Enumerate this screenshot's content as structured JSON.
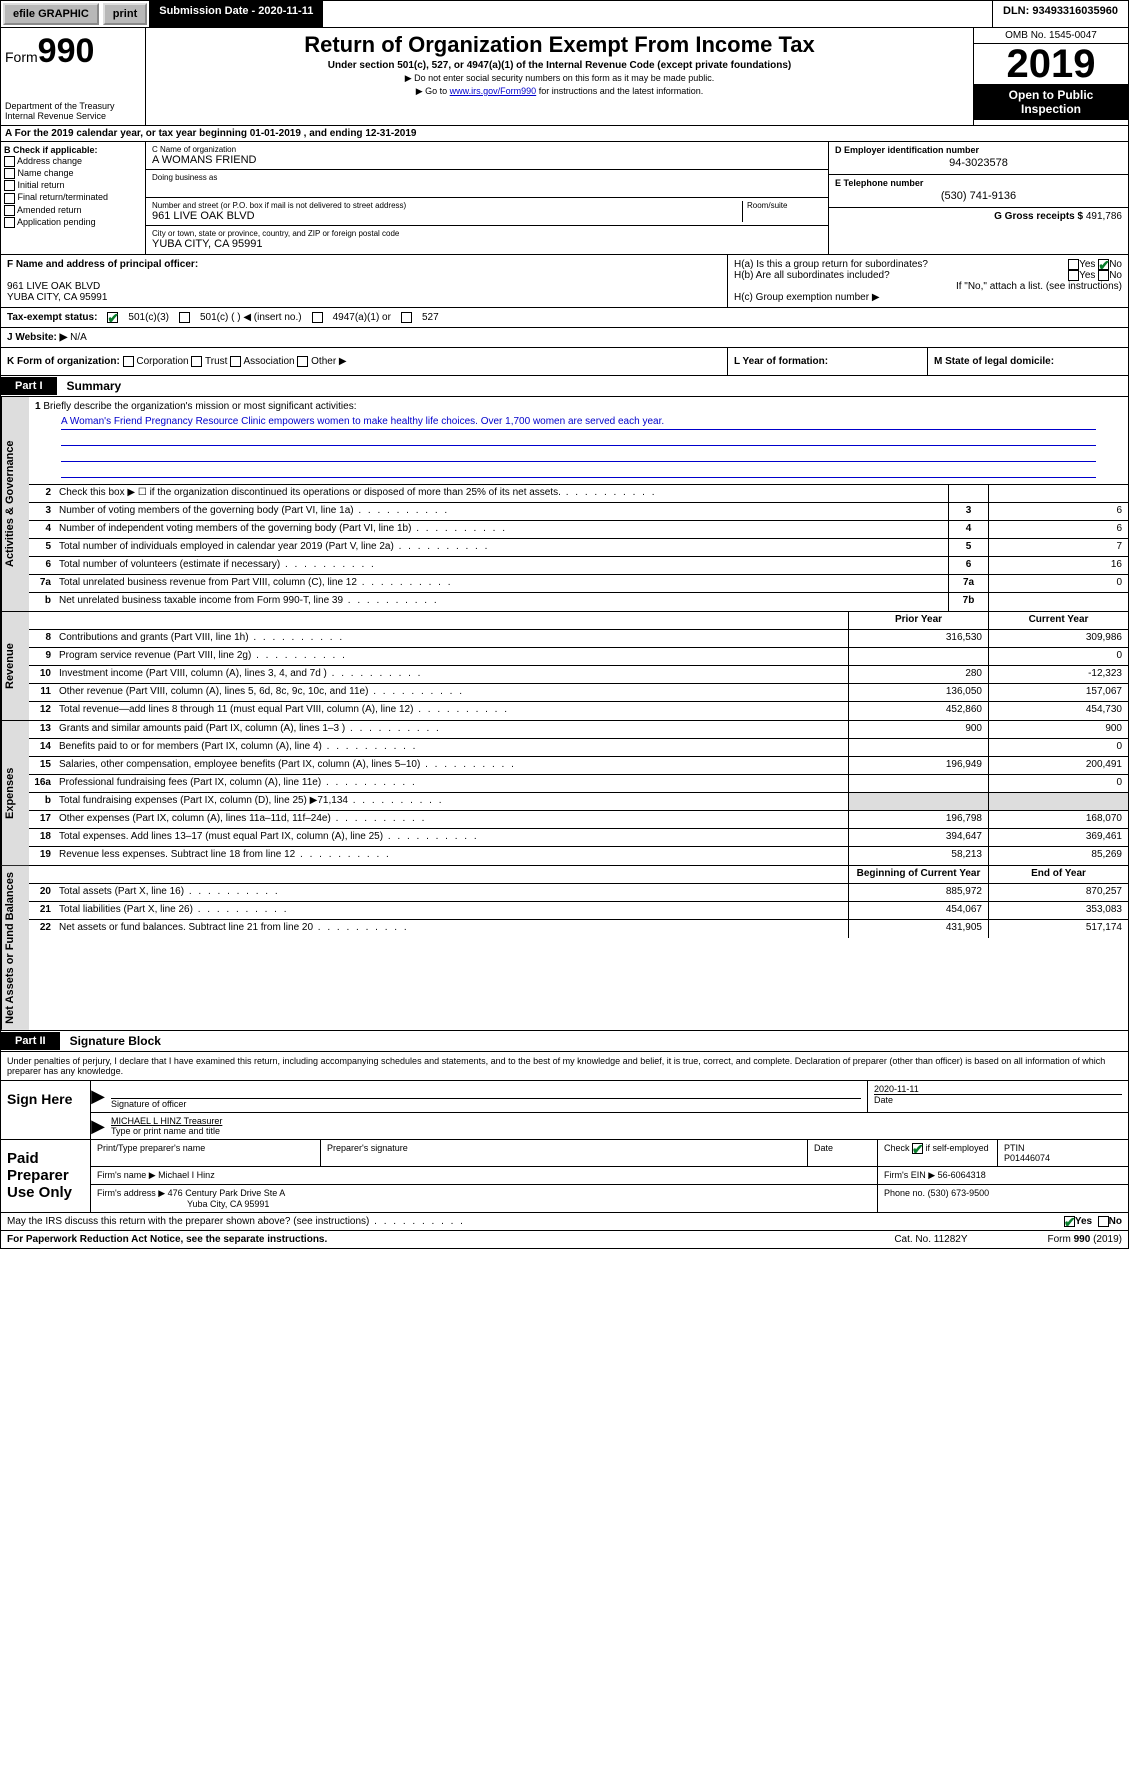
{
  "topbar": {
    "efile": "efile GRAPHIC",
    "print": "print",
    "sub_date_label": "Submission Date - 2020-11-11",
    "dln": "DLN: 93493316035960"
  },
  "header": {
    "form_label": "Form",
    "form_number": "990",
    "dept": "Department of the Treasury\nInternal Revenue Service",
    "title": "Return of Organization Exempt From Income Tax",
    "subtitle": "Under section 501(c), 527, or 4947(a)(1) of the Internal Revenue Code (except private foundations)",
    "note1": "▶ Do not enter social security numbers on this form as it may be made public.",
    "note2_pre": "▶ Go to ",
    "note2_link": "www.irs.gov/Form990",
    "note2_post": " for instructions and the latest information.",
    "omb": "OMB No. 1545-0047",
    "year": "2019",
    "open": "Open to Public Inspection"
  },
  "row_a": "A  For the 2019 calendar year, or tax year beginning 01-01-2019     , and ending 12-31-2019",
  "col_b": {
    "label": "B Check if applicable:",
    "items": [
      "Address change",
      "Name change",
      "Initial return",
      "Final return/terminated",
      "Amended return",
      "Application pending"
    ]
  },
  "col_c": {
    "name_label": "C Name of organization",
    "name": "A WOMANS FRIEND",
    "dba_label": "Doing business as",
    "dba": "",
    "addr_label": "Number and street (or P.O. box if mail is not delivered to street address)",
    "room_label": "Room/suite",
    "addr": "961 LIVE OAK BLVD",
    "city_label": "City or town, state or province, country, and ZIP or foreign postal code",
    "city": "YUBA CITY, CA  95991"
  },
  "col_d": {
    "ein_label": "D Employer identification number",
    "ein": "94-3023578",
    "phone_label": "E Telephone number",
    "phone": "(530) 741-9136",
    "gross_label": "G Gross receipts $",
    "gross": "491,786"
  },
  "row_f": {
    "label": "F  Name and address of principal officer:",
    "addr1": "961 LIVE OAK BLVD",
    "addr2": "YUBA CITY, CA  95991"
  },
  "row_h": {
    "ha": "H(a)  Is this a group return for subordinates?",
    "hb": "H(b)  Are all subordinates included?",
    "hb_note": "If \"No,\" attach a list. (see instructions)",
    "hc": "H(c)  Group exemption number ▶"
  },
  "row_i": {
    "label": "Tax-exempt status:",
    "opt1": "501(c)(3)",
    "opt2": "501(c) (   ) ◀ (insert no.)",
    "opt3": "4947(a)(1) or",
    "opt4": "527"
  },
  "row_j": {
    "label": "J  Website: ▶",
    "val": "N/A"
  },
  "row_k": {
    "k": "K Form of organization:",
    "opts": [
      "Corporation",
      "Trust",
      "Association",
      "Other ▶"
    ],
    "l": "L Year of formation:",
    "m": "M State of legal domicile:"
  },
  "part1": {
    "tab": "Part I",
    "title": "Summary"
  },
  "mission": {
    "num": "1",
    "label": "Briefly describe the organization's mission or most significant activities:",
    "text": "A Woman's Friend Pregnancy Resource Clinic empowers women to make healthy life choices. Over 1,700 women are served each year."
  },
  "governance_lines": [
    {
      "num": "2",
      "desc": "Check this box ▶ ☐  if the organization discontinued its operations or disposed of more than 25% of its net assets.",
      "c": "",
      "v": ""
    },
    {
      "num": "3",
      "desc": "Number of voting members of the governing body (Part VI, line 1a)",
      "c": "3",
      "v": "6"
    },
    {
      "num": "4",
      "desc": "Number of independent voting members of the governing body (Part VI, line 1b)",
      "c": "4",
      "v": "6"
    },
    {
      "num": "5",
      "desc": "Total number of individuals employed in calendar year 2019 (Part V, line 2a)",
      "c": "5",
      "v": "7"
    },
    {
      "num": "6",
      "desc": "Total number of volunteers (estimate if necessary)",
      "c": "6",
      "v": "16"
    },
    {
      "num": "7a",
      "desc": "Total unrelated business revenue from Part VIII, column (C), line 12",
      "c": "7a",
      "v": "0"
    },
    {
      "num": "b",
      "desc": "Net unrelated business taxable income from Form 990-T, line 39",
      "c": "7b",
      "v": ""
    }
  ],
  "revenue_head": {
    "prior": "Prior Year",
    "current": "Current Year"
  },
  "revenue_lines": [
    {
      "num": "8",
      "desc": "Contributions and grants (Part VIII, line 1h)",
      "p": "316,530",
      "c": "309,986"
    },
    {
      "num": "9",
      "desc": "Program service revenue (Part VIII, line 2g)",
      "p": "",
      "c": "0"
    },
    {
      "num": "10",
      "desc": "Investment income (Part VIII, column (A), lines 3, 4, and 7d )",
      "p": "280",
      "c": "-12,323"
    },
    {
      "num": "11",
      "desc": "Other revenue (Part VIII, column (A), lines 5, 6d, 8c, 9c, 10c, and 11e)",
      "p": "136,050",
      "c": "157,067"
    },
    {
      "num": "12",
      "desc": "Total revenue—add lines 8 through 11 (must equal Part VIII, column (A), line 12)",
      "p": "452,860",
      "c": "454,730"
    }
  ],
  "expense_lines": [
    {
      "num": "13",
      "desc": "Grants and similar amounts paid (Part IX, column (A), lines 1–3 )",
      "p": "900",
      "c": "900"
    },
    {
      "num": "14",
      "desc": "Benefits paid to or for members (Part IX, column (A), line 4)",
      "p": "",
      "c": "0"
    },
    {
      "num": "15",
      "desc": "Salaries, other compensation, employee benefits (Part IX, column (A), lines 5–10)",
      "p": "196,949",
      "c": "200,491"
    },
    {
      "num": "16a",
      "desc": "Professional fundraising fees (Part IX, column (A), line 11e)",
      "p": "",
      "c": "0"
    },
    {
      "num": "b",
      "desc": "Total fundraising expenses (Part IX, column (D), line 25) ▶71,134",
      "p": "grey",
      "c": "grey"
    },
    {
      "num": "17",
      "desc": "Other expenses (Part IX, column (A), lines 11a–11d, 11f–24e)",
      "p": "196,798",
      "c": "168,070"
    },
    {
      "num": "18",
      "desc": "Total expenses. Add lines 13–17 (must equal Part IX, column (A), line 25)",
      "p": "394,647",
      "c": "369,461"
    },
    {
      "num": "19",
      "desc": "Revenue less expenses. Subtract line 18 from line 12",
      "p": "58,213",
      "c": "85,269"
    }
  ],
  "netassets_head": {
    "prior": "Beginning of Current Year",
    "current": "End of Year"
  },
  "netassets_lines": [
    {
      "num": "20",
      "desc": "Total assets (Part X, line 16)",
      "p": "885,972",
      "c": "870,257"
    },
    {
      "num": "21",
      "desc": "Total liabilities (Part X, line 26)",
      "p": "454,067",
      "c": "353,083"
    },
    {
      "num": "22",
      "desc": "Net assets or fund balances. Subtract line 21 from line 20",
      "p": "431,905",
      "c": "517,174"
    }
  ],
  "side_labels": {
    "gov": "Activities & Governance",
    "rev": "Revenue",
    "exp": "Expenses",
    "net": "Net Assets or Fund Balances"
  },
  "part2": {
    "tab": "Part II",
    "title": "Signature Block"
  },
  "perjury": "Under penalties of perjury, I declare that I have examined this return, including accompanying schedules and statements, and to the best of my knowledge and belief, it is true, correct, and complete. Declaration of preparer (other than officer) is based on all information of which preparer has any knowledge.",
  "sign": {
    "left": "Sign Here",
    "sig_label": "Signature of officer",
    "date": "2020-11-11",
    "date_label": "Date",
    "name": "MICHAEL L HINZ  Treasurer",
    "name_label": "Type or print name and title"
  },
  "paid": {
    "left": "Paid Preparer Use Only",
    "h1": "Print/Type preparer's name",
    "h2": "Preparer's signature",
    "h3": "Date",
    "h4_a": "Check",
    "h4_b": "if self-employed",
    "h5": "PTIN",
    "ptin": "P01446074",
    "firm_name_label": "Firm's name      ▶",
    "firm_name": "Michael I Hinz",
    "firm_ein_label": "Firm's EIN ▶",
    "firm_ein": "56-6064318",
    "firm_addr_label": "Firm's address ▶",
    "firm_addr1": "476 Century Park Drive Ste A",
    "firm_addr2": "Yuba City, CA  95991",
    "phone_label": "Phone no.",
    "phone": "(530) 673-9500"
  },
  "discuss": "May the IRS discuss this return with the preparer shown above? (see instructions)",
  "footer": {
    "left": "For Paperwork Reduction Act Notice, see the separate instructions.",
    "mid": "Cat. No. 11282Y",
    "right": "Form 990 (2019)"
  },
  "yes": "Yes",
  "no": "No"
}
